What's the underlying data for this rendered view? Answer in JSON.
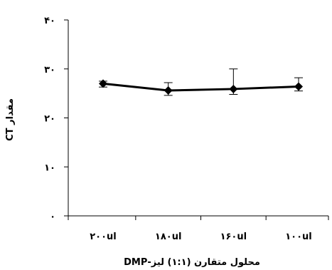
{
  "chart_data": {
    "type": "line",
    "categories": [
      "۲۰۰ul",
      "۱۸۰ul",
      "۱۶۰ul",
      "۱۰۰ul"
    ],
    "series": [
      {
        "values": [
          27.0,
          25.6,
          25.9,
          26.4
        ],
        "error_low": [
          0.7,
          1.0,
          1.1,
          0.9
        ],
        "error_high": [
          0.5,
          1.6,
          4.1,
          1.8
        ]
      }
    ],
    "xlabel": "محلول متقارن (۱:۱) لیز-DMP",
    "ylabel": "مقدار CT",
    "ylim": [
      0,
      40
    ],
    "yticks": [
      0,
      10,
      20,
      30,
      40
    ],
    "ytick_labels": [
      "۰",
      "۱۰",
      "۲۰",
      "۳۰",
      "۴۰"
    ],
    "grid": false,
    "legend": false,
    "colors": {
      "line": "#000000",
      "marker": "#000000",
      "axis": "#000000"
    }
  }
}
